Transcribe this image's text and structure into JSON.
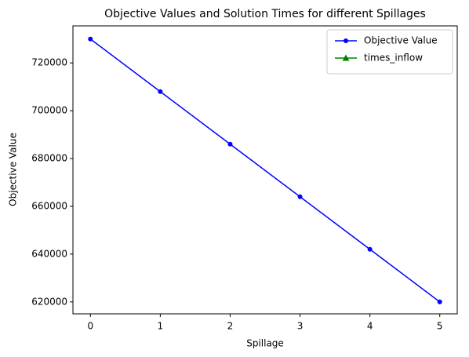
{
  "chart_data": {
    "type": "line",
    "title": "Objective Values and Solution Times for different Spillages",
    "x_label": "Spillage",
    "y_label": "Objective Value",
    "x": [
      0,
      1,
      2,
      3,
      4,
      5
    ],
    "series": [
      {
        "name": "Objective Value",
        "color": "#0000ff",
        "marker": "circle",
        "values": [
          730000,
          708000,
          686000,
          664000,
          642000,
          620000
        ]
      },
      {
        "name": "times_inflow",
        "color": "#008000",
        "marker": "triangle",
        "values": [
          null,
          null,
          null,
          null,
          null,
          null
        ]
      }
    ],
    "xlim": [
      -0.25,
      5.25
    ],
    "xticks": [
      0,
      1,
      2,
      3,
      4,
      5
    ],
    "ylim": [
      615000,
      735500
    ],
    "yticks": [
      620000,
      640000,
      660000,
      680000,
      700000,
      720000
    ],
    "grid": false,
    "legend": "upper right"
  }
}
